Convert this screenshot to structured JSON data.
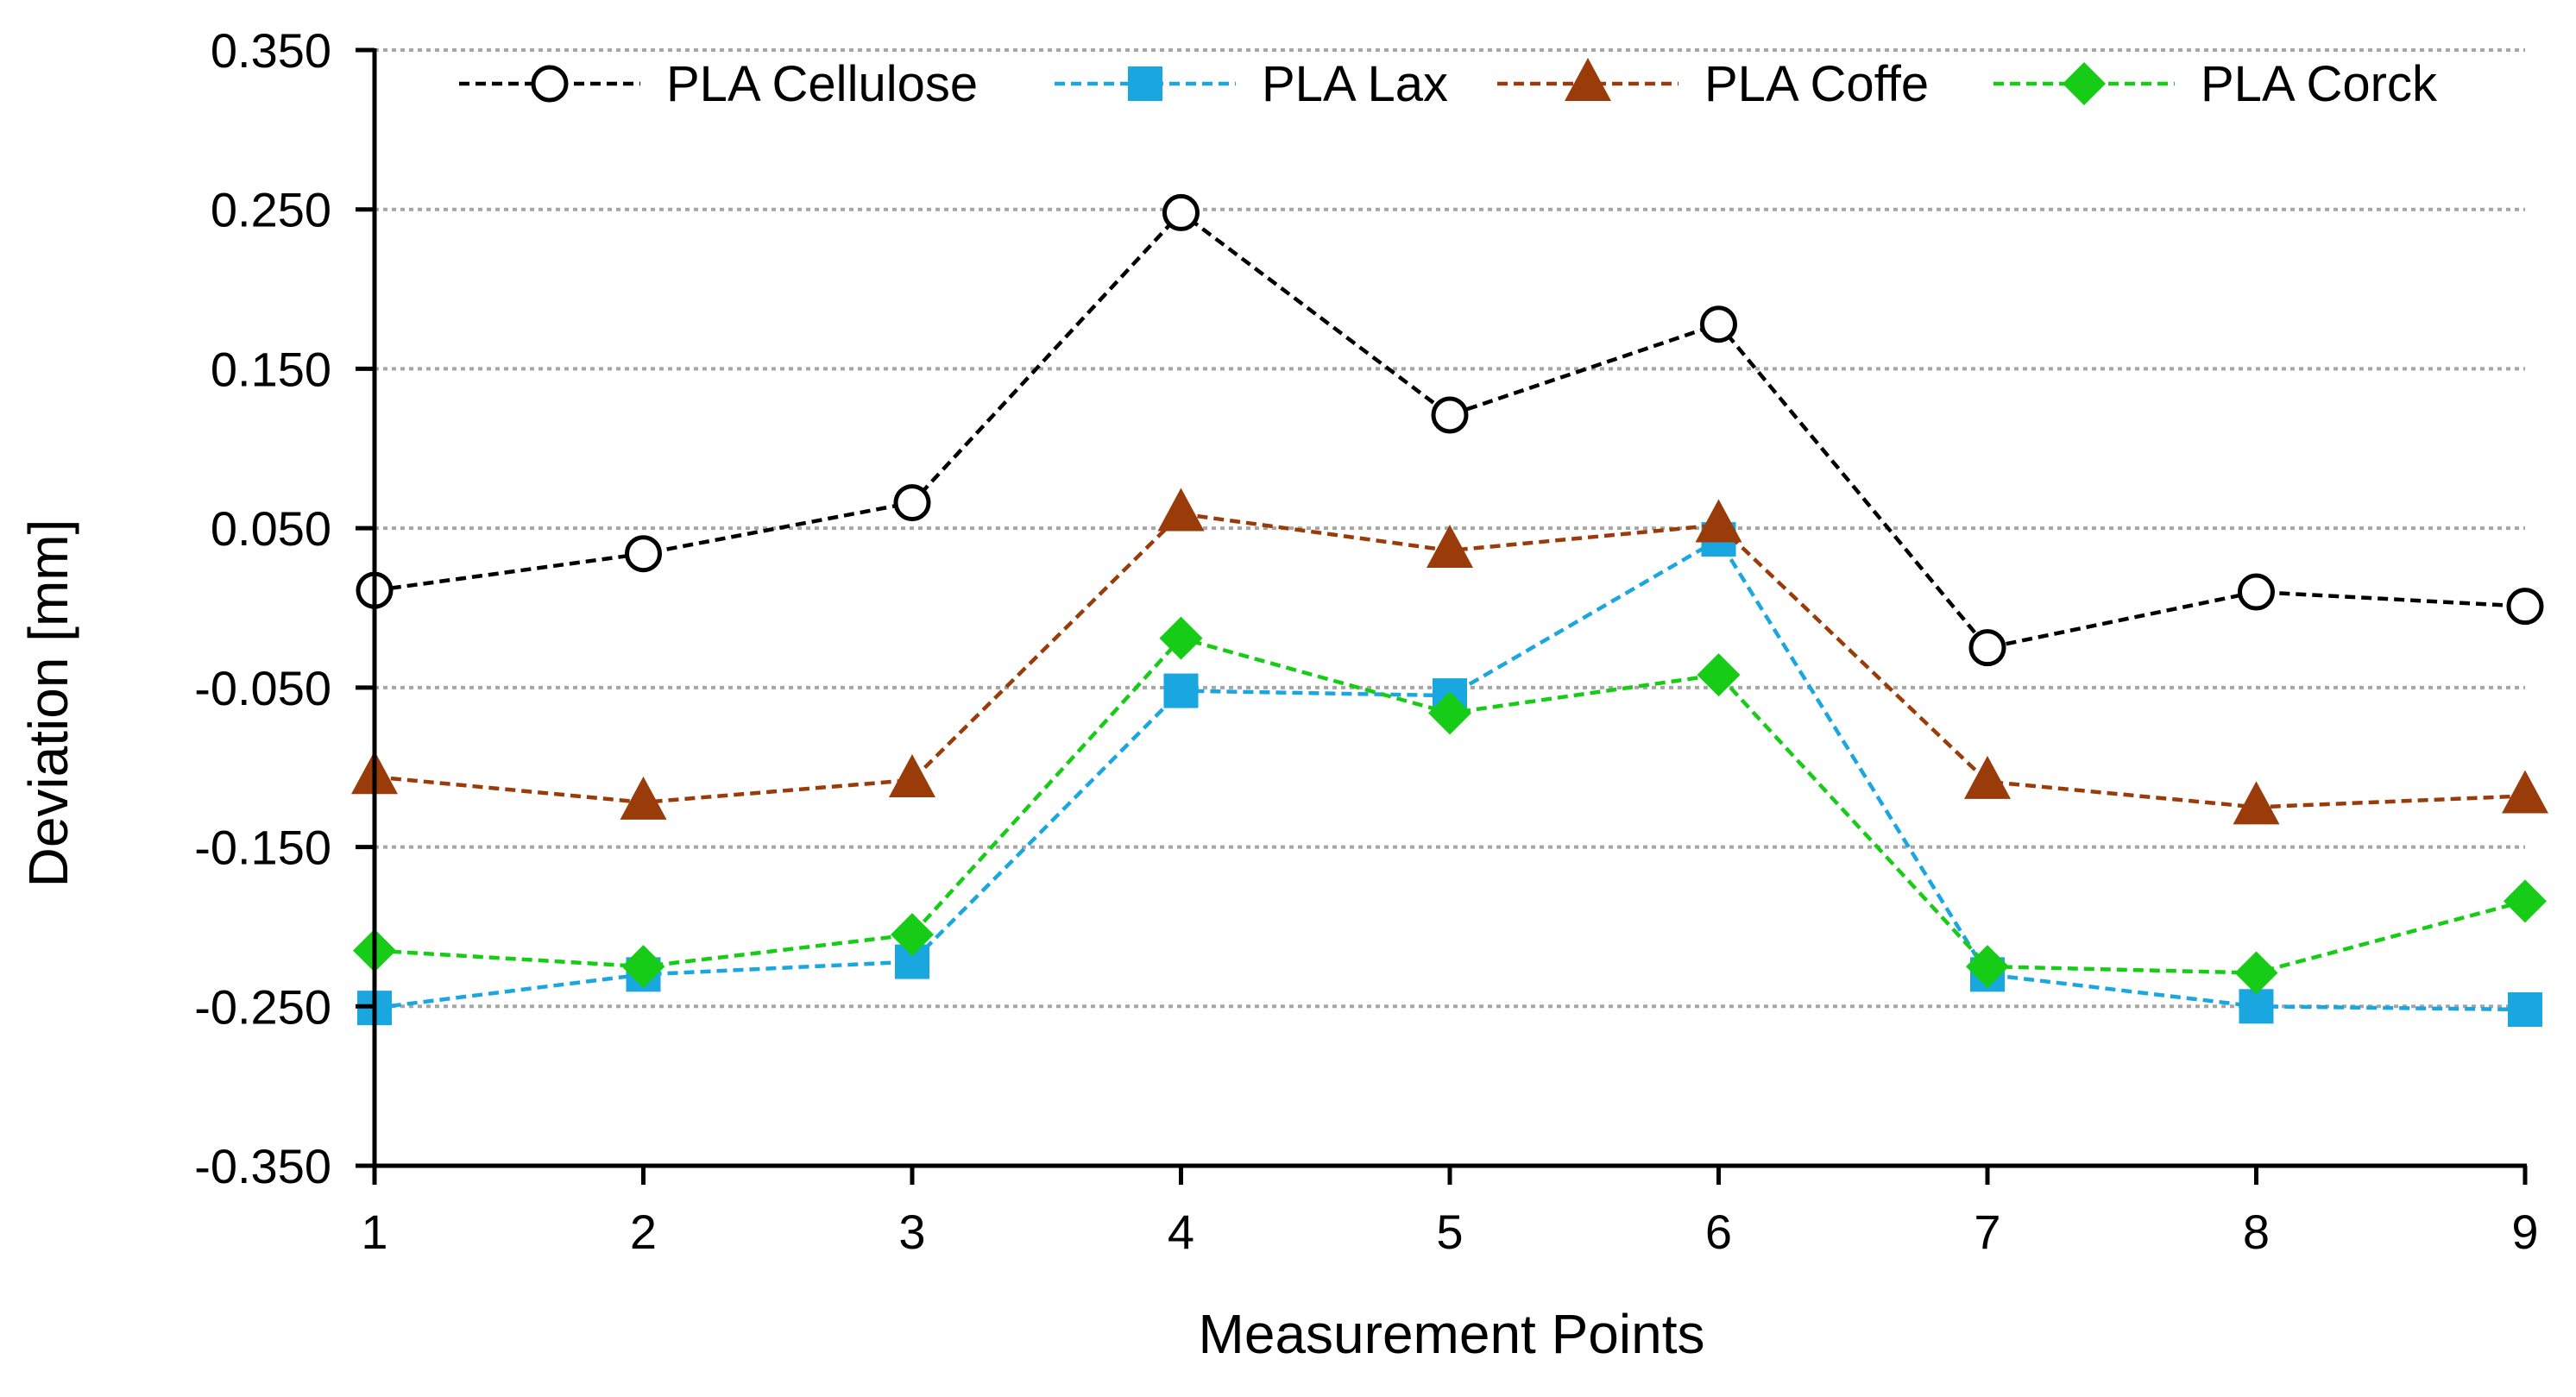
{
  "chart_data": {
    "type": "line",
    "title": "",
    "xlabel": "Measurement Points",
    "ylabel": "Deviation [mm]",
    "x": [
      1,
      2,
      3,
      4,
      5,
      6,
      7,
      8,
      9
    ],
    "x_tick_labels": [
      "1",
      "2",
      "3",
      "4",
      "5",
      "6",
      "7",
      "8",
      "9"
    ],
    "ylim": [
      -0.35,
      0.35
    ],
    "y_ticks": [
      -0.35,
      -0.25,
      -0.15,
      -0.05,
      0.05,
      0.15,
      0.25,
      0.35
    ],
    "y_tick_labels": [
      "-0.350",
      "-0.250",
      "-0.150",
      "-0.050",
      "0.050",
      "0.150",
      "0.250",
      "0.350"
    ],
    "grid": "horizontal dotted",
    "legend_position": "top",
    "series": [
      {
        "name": "PLA Cellulose",
        "color": "#000000",
        "marker": "circle-open",
        "values": [
          0.011,
          0.034,
          0.066,
          0.248,
          0.121,
          0.178,
          -0.025,
          0.01,
          0.001
        ]
      },
      {
        "name": "PLA Lax",
        "color": "#1aa7e0",
        "marker": "square",
        "values": [
          -0.251,
          -0.23,
          -0.222,
          -0.052,
          -0.055,
          0.043,
          -0.23,
          -0.25,
          -0.252
        ]
      },
      {
        "name": "PLA Coffe",
        "color": "#9a3c0a",
        "marker": "triangle",
        "values": [
          -0.106,
          -0.122,
          -0.108,
          0.059,
          0.036,
          0.052,
          -0.109,
          -0.125,
          -0.118
        ]
      },
      {
        "name": "PLA Corck",
        "color": "#17cc17",
        "marker": "diamond",
        "values": [
          -0.215,
          -0.225,
          -0.205,
          -0.019,
          -0.066,
          -0.042,
          -0.225,
          -0.229,
          -0.184
        ]
      }
    ]
  }
}
